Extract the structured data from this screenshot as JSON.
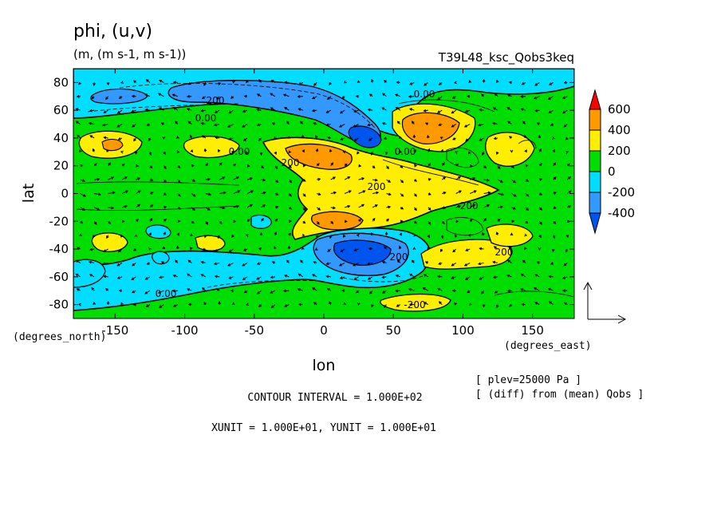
{
  "chart_data": {
    "type": "heatmap",
    "title": "phi, (u,v)",
    "subtitle": "(m, (m s-1, m s-1))",
    "run_label": "T39L48_ksc_Qobs3keq",
    "xlabel": "lon",
    "ylabel": "lat",
    "x_unit_label": "(degrees_east)",
    "y_unit_label": "(degrees_north)",
    "xlim": [
      -180,
      180
    ],
    "ylim": [
      -90,
      90
    ],
    "x_ticks": [
      "-150",
      "-100",
      "-50",
      "0",
      "50",
      "100",
      "150"
    ],
    "x_tick_values": [
      -150,
      -100,
      -50,
      0,
      50,
      100,
      150
    ],
    "y_ticks": [
      "80",
      "60",
      "40",
      "20",
      "0",
      "-20",
      "-40",
      "-60",
      "-80"
    ],
    "y_tick_values": [
      80,
      60,
      40,
      20,
      0,
      -20,
      -40,
      -60,
      -80
    ],
    "colorbar": {
      "labels": [
        "600",
        "400",
        "200",
        "0",
        "-200",
        "-400"
      ],
      "colors": [
        "#ff0000",
        "#ff9900",
        "#ffee00",
        "#00dd00",
        "#00ddff",
        "#3399ff",
        "#0055ee"
      ]
    },
    "contour_labels": [
      "200",
      "0.00",
      "0.00",
      "200",
      "0.00",
      "-200",
      "200",
      "-200",
      "0.00",
      "0.00",
      "200",
      "200"
    ],
    "info_lines": [
      "[ plev=25000 Pa ]",
      "[ (diff) from (mean) Qobs ]"
    ],
    "contour_interval_text": "CONTOUR INTERVAL = 1.000E+02",
    "unit_vector_text": "XUNIT = 1.000E+01, YUNIT = 1.000E+01"
  }
}
